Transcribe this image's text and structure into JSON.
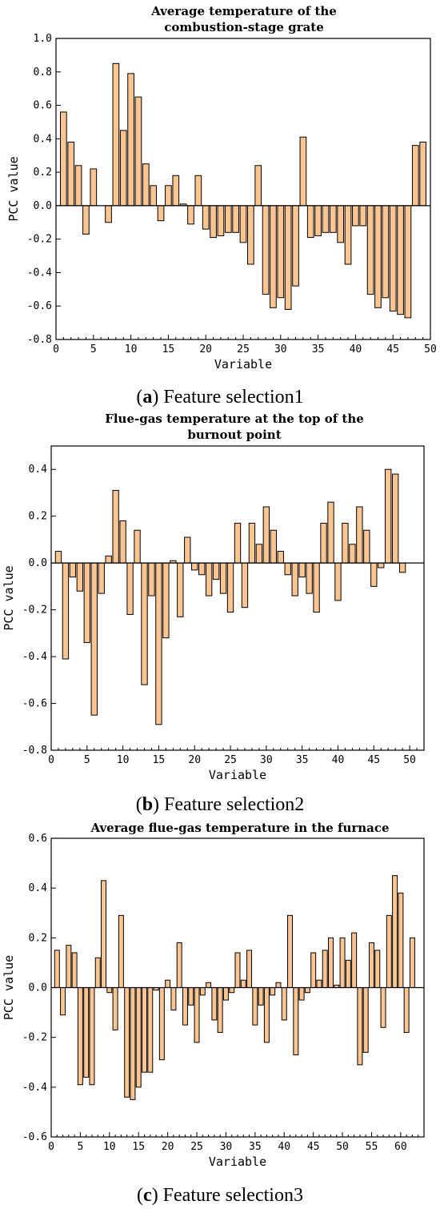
{
  "chart_data": [
    {
      "type": "bar",
      "title": "Average temperature of the combustion-stage grate",
      "title_lines": [
        "Average temperature of the",
        "combustion-stage grate"
      ],
      "caption": {
        "open": "(",
        "letter": "a",
        "rest": ") Feature selection1"
      },
      "xlabel": "Variable",
      "ylabel": "PCC value",
      "xlim": [
        0,
        50
      ],
      "ylim": [
        -0.8,
        1.0
      ],
      "xticks": [
        0,
        5,
        10,
        15,
        20,
        25,
        30,
        35,
        40,
        45,
        50
      ],
      "yticks": [
        -0.8,
        -0.6,
        -0.4,
        -0.2,
        0.0,
        0.2,
        0.4,
        0.6,
        0.8,
        1.0
      ],
      "ytick_labels": [
        "-0.8",
        "-0.6",
        "-0.4",
        "-0.2",
        "0.0",
        "0.2",
        "0.4",
        "0.6",
        "0.8",
        "1.0"
      ],
      "minor_xticks": true,
      "grid": false,
      "bar_color": "#fbc592",
      "x": [
        1,
        2,
        3,
        4,
        5,
        7,
        8,
        9,
        10,
        11,
        12,
        13,
        14,
        15,
        16,
        17,
        18,
        19,
        20,
        21,
        22,
        23,
        24,
        25,
        26,
        27,
        28,
        29,
        30,
        31,
        32,
        33,
        34,
        35,
        36,
        37,
        38,
        39,
        40,
        41,
        42,
        43,
        44,
        45,
        46,
        47,
        48,
        49
      ],
      "values": [
        0.56,
        0.38,
        0.24,
        -0.17,
        0.22,
        -0.1,
        0.85,
        0.45,
        0.79,
        0.65,
        0.25,
        0.12,
        -0.09,
        0.12,
        0.18,
        0.01,
        -0.11,
        0.18,
        -0.14,
        -0.19,
        -0.18,
        -0.16,
        -0.16,
        -0.22,
        -0.35,
        0.24,
        -0.53,
        -0.61,
        -0.55,
        -0.62,
        -0.48,
        0.41,
        -0.19,
        -0.18,
        -0.16,
        -0.16,
        -0.22,
        -0.35,
        -0.12,
        -0.12,
        -0.53,
        -0.61,
        -0.55,
        -0.63,
        -0.65,
        -0.67,
        0.36,
        0.38
      ]
    },
    {
      "type": "bar",
      "title": "Flue-gas temperature at the top of the burnout point",
      "title_lines": [
        "Flue-gas temperature at the top of the",
        "burnout point"
      ],
      "caption": {
        "open": "(",
        "letter": "b",
        "rest": ") Feature selection2"
      },
      "xlabel": "Variable",
      "ylabel": "PCC value",
      "xlim": [
        0,
        52
      ],
      "ylim": [
        -0.8,
        0.5
      ],
      "xticks": [
        0,
        5,
        10,
        15,
        20,
        25,
        30,
        35,
        40,
        45,
        50
      ],
      "yticks": [
        -0.8,
        -0.6,
        -0.4,
        -0.2,
        0.0,
        0.2,
        0.4
      ],
      "ytick_labels": [
        "-0.8",
        "-0.6",
        "-0.4",
        "-0.2",
        "0.0",
        "0.2",
        "0.4"
      ],
      "minor_xticks": true,
      "grid": false,
      "bar_color": "#fbc592",
      "x": [
        1,
        2,
        3,
        4,
        5,
        6,
        7,
        8,
        9,
        10,
        11,
        12,
        13,
        14,
        15,
        16,
        17,
        18,
        19,
        20,
        21,
        22,
        23,
        24,
        25,
        26,
        27,
        28,
        29,
        30,
        31,
        32,
        33,
        34,
        35,
        36,
        37,
        38,
        39,
        40,
        41,
        42,
        43,
        44,
        45,
        46,
        47,
        48,
        49
      ],
      "values": [
        0.05,
        -0.41,
        -0.06,
        -0.12,
        -0.34,
        -0.65,
        -0.13,
        0.03,
        0.31,
        0.18,
        -0.22,
        0.14,
        -0.52,
        -0.14,
        -0.69,
        -0.32,
        0.01,
        -0.23,
        0.11,
        -0.03,
        -0.05,
        -0.14,
        -0.07,
        -0.13,
        -0.21,
        0.17,
        -0.19,
        0.17,
        0.08,
        0.24,
        0.14,
        0.05,
        -0.05,
        -0.14,
        -0.06,
        -0.13,
        -0.21,
        0.17,
        0.26,
        -0.16,
        0.17,
        0.08,
        0.24,
        0.14,
        -0.1,
        -0.02,
        0.4,
        0.38,
        -0.04
      ]
    },
    {
      "type": "bar",
      "title": "Average flue-gas temperature in the furnace",
      "title_lines": [
        "Average flue-gas temperature in the furnace"
      ],
      "caption": {
        "open": "(",
        "letter": "c",
        "rest": ") Feature selection3"
      },
      "xlabel": "Variable",
      "ylabel": "PCC value",
      "xlim": [
        0,
        64
      ],
      "ylim": [
        -0.6,
        0.6
      ],
      "xticks": [
        0,
        5,
        10,
        15,
        20,
        25,
        30,
        35,
        40,
        45,
        50,
        55,
        60
      ],
      "yticks": [
        -0.6,
        -0.4,
        -0.2,
        0.0,
        0.2,
        0.4,
        0.6
      ],
      "ytick_labels": [
        "-0.6",
        "-0.4",
        "-0.2",
        "0.0",
        "0.2",
        "0.4",
        "0.6"
      ],
      "minor_xticks": true,
      "grid": false,
      "bar_color": "#fbc592",
      "x": [
        1,
        2,
        3,
        4,
        5,
        6,
        7,
        8,
        9,
        10,
        11,
        12,
        13,
        14,
        15,
        16,
        17,
        18,
        19,
        20,
        21,
        22,
        23,
        24,
        25,
        26,
        27,
        28,
        29,
        30,
        31,
        32,
        33,
        34,
        35,
        36,
        37,
        38,
        39,
        40,
        41,
        42,
        43,
        44,
        45,
        46,
        47,
        48,
        49,
        50,
        51,
        52,
        53,
        54,
        55,
        56,
        57,
        58,
        59,
        60,
        61,
        62
      ],
      "values": [
        0.15,
        -0.11,
        0.17,
        0.14,
        -0.39,
        -0.36,
        -0.39,
        0.12,
        0.43,
        -0.02,
        -0.17,
        0.29,
        -0.44,
        -0.45,
        -0.4,
        -0.34,
        -0.34,
        -0.01,
        -0.29,
        0.03,
        -0.09,
        0.18,
        -0.15,
        -0.07,
        -0.22,
        -0.03,
        0.02,
        -0.13,
        -0.18,
        -0.05,
        -0.02,
        0.14,
        0.03,
        0.15,
        -0.15,
        -0.07,
        -0.22,
        -0.03,
        0.02,
        -0.13,
        0.29,
        -0.27,
        -0.05,
        -0.02,
        0.14,
        0.03,
        0.15,
        0.2,
        0.01,
        0.2,
        0.11,
        0.22,
        -0.31,
        -0.26,
        0.18,
        0.15,
        -0.16,
        0.29,
        0.45,
        0.38,
        -0.18,
        0.2
      ]
    }
  ]
}
